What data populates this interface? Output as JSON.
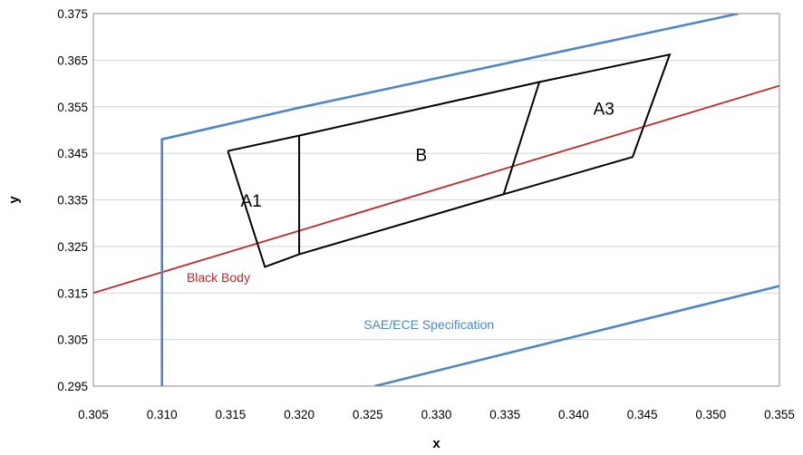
{
  "chart_data": {
    "type": "line",
    "title": "",
    "xlabel": "x",
    "ylabel": "y",
    "xlim": [
      0.305,
      0.355
    ],
    "ylim": [
      0.295,
      0.375
    ],
    "x_ticks": [
      "0.305",
      "0.310",
      "0.315",
      "0.320",
      "0.325",
      "0.330",
      "0.335",
      "0.340",
      "0.345",
      "0.350",
      "0.355"
    ],
    "y_ticks": [
      "0.295",
      "0.305",
      "0.315",
      "0.325",
      "0.335",
      "0.345",
      "0.355",
      "0.365",
      "0.375"
    ],
    "grid": "horizontal",
    "colors": {
      "black_body": "#C0282C",
      "sae_ece": "#4F86C6",
      "regions": "#000000",
      "grid": "#D4D4D4"
    },
    "series": [
      {
        "name": "Black Body",
        "color": "#C0282C",
        "points": [
          [
            0.305,
            0.315
          ],
          [
            0.355,
            0.3595
          ]
        ]
      },
      {
        "name": "SAE/ECE Specification",
        "color": "#4F86C6",
        "segments": [
          [
            [
              0.31,
              0.295
            ],
            [
              0.31,
              0.348
            ],
            [
              0.32,
              0.3548
            ],
            [
              0.352,
              0.375
            ]
          ],
          [
            [
              0.3255,
              0.295
            ],
            [
              0.355,
              0.3165
            ]
          ]
        ]
      },
      {
        "name": "A1",
        "color": "#000000",
        "points": [
          [
            0.3148,
            0.3455
          ],
          [
            0.32,
            0.3488
          ],
          [
            0.32,
            0.3233
          ],
          [
            0.3175,
            0.3206
          ],
          [
            0.3148,
            0.3455
          ]
        ]
      },
      {
        "name": "B",
        "color": "#000000",
        "points": [
          [
            0.32,
            0.3488
          ],
          [
            0.3375,
            0.3603
          ],
          [
            0.3349,
            0.3362
          ],
          [
            0.32,
            0.3233
          ]
        ]
      },
      {
        "name": "A3",
        "color": "#000000",
        "points": [
          [
            0.3375,
            0.3603
          ],
          [
            0.347,
            0.3662
          ],
          [
            0.3443,
            0.3442
          ],
          [
            0.3349,
            0.3362
          ]
        ]
      }
    ],
    "annotations": [
      {
        "text": "A1",
        "x": 0.3165,
        "y": 0.3335
      },
      {
        "text": "B",
        "x": 0.3289,
        "y": 0.3434
      },
      {
        "text": "A3",
        "x": 0.3422,
        "y": 0.3533
      },
      {
        "text": "Black Body",
        "x": 0.3118,
        "y": 0.3174
      },
      {
        "text": "SAE/ECE Specification",
        "x": 0.3247,
        "y": 0.3073
      }
    ]
  }
}
